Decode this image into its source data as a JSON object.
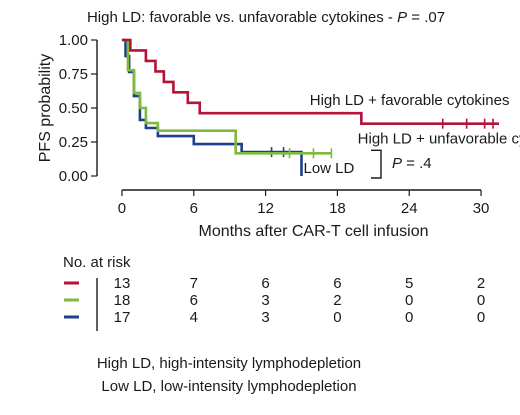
{
  "chart_data": {
    "type": "line",
    "subtype": "kaplan-meier step curve",
    "title": "High LD: favorable vs. unfavorable cytokines - ",
    "title_p_label": "P",
    "title_p_value": " = .07",
    "xlabel": "Months after CAR-T cell infusion",
    "ylabel": "PFS probability",
    "xlim": [
      -1.5,
      31.5
    ],
    "ylim": [
      0,
      1
    ],
    "x_ticks": [
      0,
      6,
      12,
      18,
      24,
      30
    ],
    "x_tick_labels": [
      "0",
      "6",
      "12",
      "18",
      "24",
      "30"
    ],
    "y_ticks": [
      0,
      0.25,
      0.5,
      0.75,
      1
    ],
    "y_tick_labels": [
      "0.00",
      "0.25",
      "0.50",
      "0.75",
      "1.00"
    ],
    "grid": false,
    "series": [
      {
        "name": "High LD + favorable cytokines",
        "color": "#b5123a",
        "x": [
          0,
          0.7,
          2.0,
          2.8,
          3.5,
          4.3,
          5.5,
          6.5,
          20.0,
          31.5
        ],
        "y": [
          1.0,
          0.923,
          0.846,
          0.769,
          0.692,
          0.615,
          0.538,
          0.462,
          0.385,
          0.385
        ],
        "censor_x": [
          26.8,
          28.8,
          30.3,
          31.0
        ],
        "label_x": 6.5,
        "label_y": 0.462
      },
      {
        "name": "High LD + unfavorable cytokines",
        "color": "#7fba3e",
        "x": [
          0,
          0.5,
          1.0,
          1.5,
          2.0,
          3.0,
          9.5,
          17.5
        ],
        "y": [
          1.0,
          0.778,
          0.611,
          0.5,
          0.389,
          0.333,
          0.167,
          0.167
        ],
        "censor_x": [
          14.0,
          16.0,
          17.5
        ],
        "label_x": 9.5,
        "label_y": 0.167
      },
      {
        "name": "Low LD",
        "color": "#1f3f8c",
        "x": [
          0,
          0.3,
          0.6,
          1.0,
          1.5,
          2.0,
          3.0,
          6.0,
          10.0,
          15.0
        ],
        "y": [
          1.0,
          0.882,
          0.765,
          0.588,
          0.412,
          0.353,
          0.294,
          0.235,
          0.176,
          0.0
        ],
        "censor_x": [
          12.5,
          13.5
        ],
        "label_x": 15.0,
        "label_y": 0.0
      }
    ],
    "bracket_p_label": "P",
    "bracket_p_value": " = .4",
    "risk_table": {
      "title": "No. at risk",
      "times": [
        0,
        6,
        12,
        18,
        24,
        30
      ],
      "rows": [
        {
          "color": "#b5123a",
          "values": [
            "13",
            "7",
            "6",
            "6",
            "5",
            "2"
          ]
        },
        {
          "color": "#7fba3e",
          "values": [
            "18",
            "6",
            "3",
            "2",
            "0",
            "0"
          ]
        },
        {
          "color": "#1f3f8c",
          "values": [
            "17",
            "4",
            "3",
            "0",
            "0",
            "0"
          ]
        }
      ]
    },
    "footnotes": [
      "High LD, high-intensity lymphodepletion",
      "Low LD, low-intensity lymphodepletion"
    ]
  }
}
